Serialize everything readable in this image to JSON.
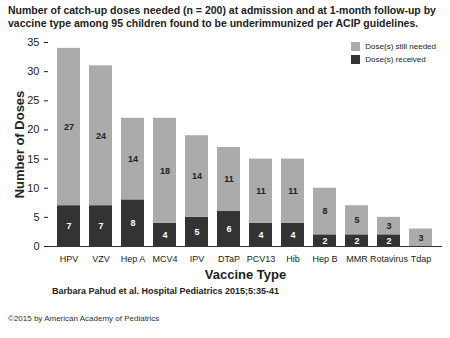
{
  "chart_data": {
    "type": "bar",
    "title": "Number of catch-up doses needed (n = 200) at admission and at 1-month follow-up by vaccine type among 95 children found to be underimmunized per ACIP guidelines.",
    "x_label": "Vaccine Type",
    "y_label": "Number of Doses",
    "categories": [
      "HPV",
      "VZV",
      "Hep A",
      "MCV4",
      "IPV",
      "DTaP",
      "PCV13",
      "Hib",
      "Hep B",
      "MMR",
      "Rotavirus",
      "Tdap"
    ],
    "series": [
      {
        "name": "Dose(s) received",
        "color": "#333333",
        "values": [
          7,
          7,
          8,
          4,
          5,
          6,
          4,
          4,
          2,
          2,
          2,
          null
        ]
      },
      {
        "name": "Dose(s) still needed",
        "color": "#ababab",
        "values": [
          27,
          24,
          14,
          18,
          14,
          11,
          11,
          11,
          8,
          5,
          3,
          3
        ]
      }
    ],
    "stacked": true,
    "data_labels": true,
    "legend": "top-right",
    "grid": false,
    "ylim": [
      0,
      35
    ],
    "yticks": [
      0,
      5,
      10,
      15,
      20,
      25,
      30,
      35
    ]
  },
  "caption": "Barbara Pahud et al. Hospital Pediatrics 2015;5:35-41",
  "footer": "©2015 by American Academy of Pediatrics"
}
